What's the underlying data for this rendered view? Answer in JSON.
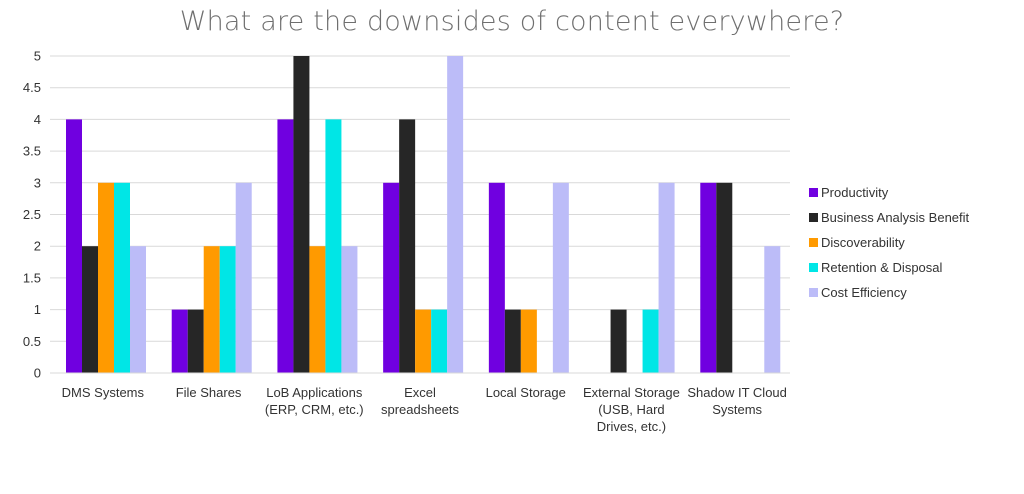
{
  "chart_data": {
    "type": "bar",
    "title": "What are the downsides of content everywhere?",
    "categories": [
      [
        "DMS Systems"
      ],
      [
        "File Shares"
      ],
      [
        "LoB Applications",
        "(ERP, CRM, etc.)"
      ],
      [
        "Excel",
        "spreadsheets"
      ],
      [
        "Local Storage"
      ],
      [
        "External Storage",
        "(USB, Hard",
        "Drives, etc.)"
      ],
      [
        "Shadow IT Cloud",
        "Systems"
      ]
    ],
    "series": [
      {
        "name": "Productivity",
        "color": "#7000e0",
        "values": [
          4,
          1,
          4,
          3,
          3,
          0,
          3
        ]
      },
      {
        "name": "Business Analysis Benefit",
        "color": "#262626",
        "values": [
          2,
          1,
          5,
          4,
          1,
          1,
          3
        ]
      },
      {
        "name": "Discoverability",
        "color": "#ff9a00",
        "values": [
          3,
          2,
          2,
          1,
          1,
          0,
          0
        ]
      },
      {
        "name": "Retention & Disposal",
        "color": "#00e6e6",
        "values": [
          3,
          2,
          4,
          1,
          0,
          1,
          0
        ]
      },
      {
        "name": "Cost Efficiency",
        "color": "#bcbcf8",
        "values": [
          2,
          3,
          2,
          5,
          3,
          3,
          2
        ]
      }
    ],
    "ylim": [
      0,
      5
    ],
    "yticks": [
      "0",
      "0.5",
      "1",
      "1.5",
      "2",
      "2.5",
      "3",
      "3.5",
      "4",
      "4.5",
      "5"
    ],
    "grid": true,
    "legend_position": "right"
  }
}
